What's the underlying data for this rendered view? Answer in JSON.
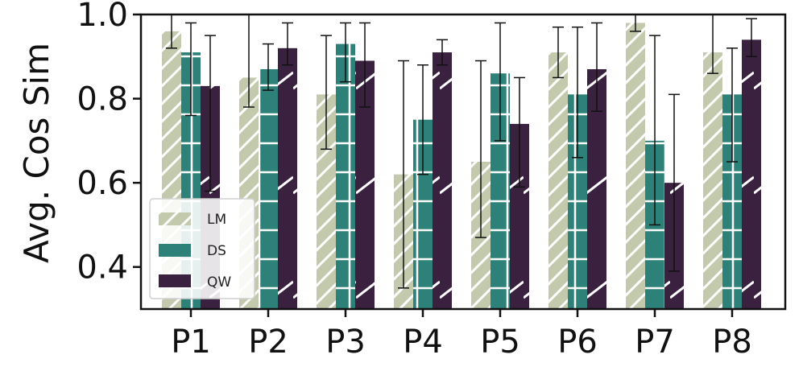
{
  "chart_data": {
    "type": "bar",
    "title": "",
    "xlabel": "",
    "ylabel": "Avg. Cos Sim",
    "ylim": [
      0.3,
      1.0
    ],
    "yticks": [
      "0.4",
      "0.6",
      "0.8",
      "1.0"
    ],
    "grid": false,
    "legend_position": "lower-left",
    "categories": [
      "P1",
      "P2",
      "P3",
      "P4",
      "P5",
      "P6",
      "P7",
      "P8"
    ],
    "series": [
      {
        "name": "LM",
        "color": "#c2c9ad",
        "values": [
          0.96,
          0.85,
          0.81,
          0.62,
          0.65,
          0.91,
          0.98,
          0.91
        ],
        "err_low": [
          0.92,
          0.78,
          0.68,
          0.35,
          0.47,
          0.85,
          0.96,
          0.86
        ],
        "err_high": [
          1.0,
          1.0,
          0.95,
          0.89,
          0.89,
          0.97,
          1.0,
          1.0
        ]
      },
      {
        "name": "DS",
        "color": "#2e8178",
        "values": [
          0.91,
          0.87,
          0.93,
          0.75,
          0.86,
          0.81,
          0.7,
          0.81
        ],
        "err_low": [
          0.76,
          0.82,
          0.84,
          0.62,
          0.7,
          0.66,
          0.5,
          0.65
        ],
        "err_high": [
          0.98,
          0.93,
          0.98,
          0.88,
          0.98,
          0.97,
          0.95,
          0.92
        ]
      },
      {
        "name": "QW",
        "color": "#3a2140",
        "values": [
          0.83,
          0.92,
          0.89,
          0.91,
          0.74,
          0.87,
          0.6,
          0.94
        ],
        "err_low": [
          0.58,
          0.88,
          0.78,
          0.88,
          0.59,
          0.77,
          0.39,
          0.9
        ],
        "err_high": [
          0.95,
          0.98,
          0.98,
          0.94,
          0.85,
          0.98,
          0.81,
          0.99
        ]
      }
    ]
  }
}
